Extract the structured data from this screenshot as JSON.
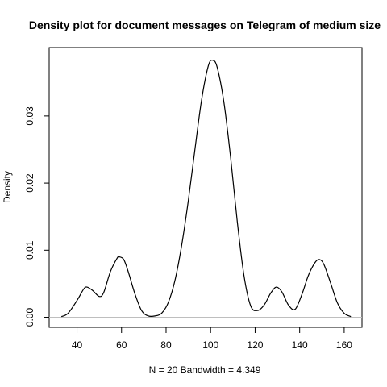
{
  "chart_data": {
    "type": "line",
    "title": "Density plot for document messages on Telegram of medium size",
    "xlabel": "N = 20   Bandwidth = 4.349",
    "ylabel": "Density",
    "xlim": [
      27.5,
      168
    ],
    "ylim": [
      -0.0015,
      0.0402
    ],
    "x_ticks": [
      40,
      60,
      80,
      100,
      120,
      140,
      160
    ],
    "y_ticks": [
      0.0,
      0.01,
      0.02,
      0.03
    ],
    "y_tick_labels": [
      "0.00",
      "0.01",
      "0.02",
      "0.03"
    ],
    "baseline": 0,
    "grid": false,
    "series": [
      {
        "x": [
          33,
          36,
          40,
          43,
          44.5,
          47,
          50,
          52,
          55,
          58,
          59,
          61,
          63,
          66,
          69,
          72,
          75,
          78,
          81,
          84,
          87,
          90,
          93,
          96,
          99,
          101,
          103,
          106,
          109,
          112,
          115,
          118,
          121,
          124,
          127,
          129.5,
          132,
          135,
          138,
          141,
          144,
          147,
          149,
          151,
          154,
          157,
          160,
          163
        ],
        "y": [
          0.0001,
          0.0006,
          0.0025,
          0.0042,
          0.0045,
          0.004,
          0.0031,
          0.0037,
          0.0068,
          0.0088,
          0.009,
          0.0086,
          0.0068,
          0.0035,
          0.001,
          0.0002,
          0.0002,
          0.0006,
          0.0022,
          0.0055,
          0.0107,
          0.0174,
          0.0251,
          0.0325,
          0.0375,
          0.0383,
          0.0372,
          0.032,
          0.0238,
          0.0142,
          0.0062,
          0.0017,
          0.001,
          0.0018,
          0.0036,
          0.0045,
          0.0038,
          0.0018,
          0.0012,
          0.0034,
          0.0063,
          0.0082,
          0.0086,
          0.0078,
          0.005,
          0.0021,
          0.0006,
          0.0001
        ]
      }
    ]
  }
}
